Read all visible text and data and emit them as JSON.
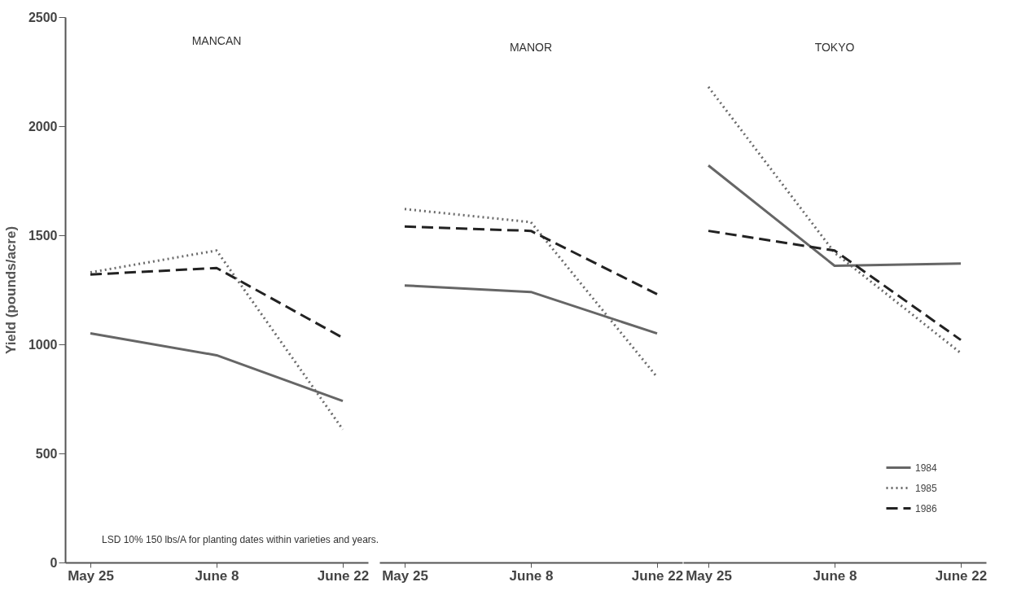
{
  "chart_data": [
    {
      "type": "line",
      "title": "MANCAN",
      "ylabel": "Yield (pounds/acre)",
      "categories": [
        "May 25",
        "June 8",
        "June 22"
      ],
      "ylim": [
        0,
        2500
      ],
      "yticks": [
        0,
        500,
        1000,
        1500,
        2000,
        2500
      ],
      "legend": false,
      "annotations": [
        "LSD 10% 150 lbs/A for planting dates within varieties and years."
      ],
      "series": [
        {
          "color": "#666666",
          "line_style": "solid",
          "values": [
            1050,
            950,
            740
          ]
        },
        {
          "color": "#6b6b6b",
          "line_style": "dotted",
          "values": [
            1330,
            1430,
            610
          ]
        },
        {
          "color": "#222222",
          "line_style": "dashed",
          "values": [
            1320,
            1350,
            1030
          ]
        }
      ]
    },
    {
      "type": "line",
      "title": "MANOR",
      "categories": [
        "May 25",
        "June 8",
        "June 22"
      ],
      "ylim": [
        0,
        2500
      ],
      "yticks": [
        0,
        500,
        1000,
        1500,
        2000,
        2500
      ],
      "legend": false,
      "tick_labels": "x",
      "series": [
        {
          "color": "#666666",
          "line_style": "solid",
          "values": [
            1270,
            1240,
            1050
          ]
        },
        {
          "color": "#6b6b6b",
          "line_style": "dotted",
          "values": [
            1620,
            1560,
            850
          ]
        },
        {
          "color": "#222222",
          "line_style": "dashed",
          "values": [
            1540,
            1520,
            1230
          ]
        }
      ]
    },
    {
      "type": "line",
      "title": "TOKYO",
      "categories": [
        "May 25",
        "June 8",
        "June 22"
      ],
      "ylim": [
        0,
        2500
      ],
      "yticks": [
        0,
        500,
        1000,
        1500,
        2000,
        2500
      ],
      "legend": "bottom right",
      "tick_labels": "x",
      "series": [
        {
          "name": "1984",
          "color": "#666666",
          "line_style": "solid",
          "values": [
            1820,
            1360,
            1370
          ]
        },
        {
          "name": "1985",
          "color": "#6b6b6b",
          "line_style": "dotted",
          "values": [
            2180,
            1420,
            960
          ]
        },
        {
          "name": "1986",
          "color": "#222222",
          "line_style": "dashed",
          "values": [
            1520,
            1430,
            1020
          ]
        }
      ]
    }
  ]
}
